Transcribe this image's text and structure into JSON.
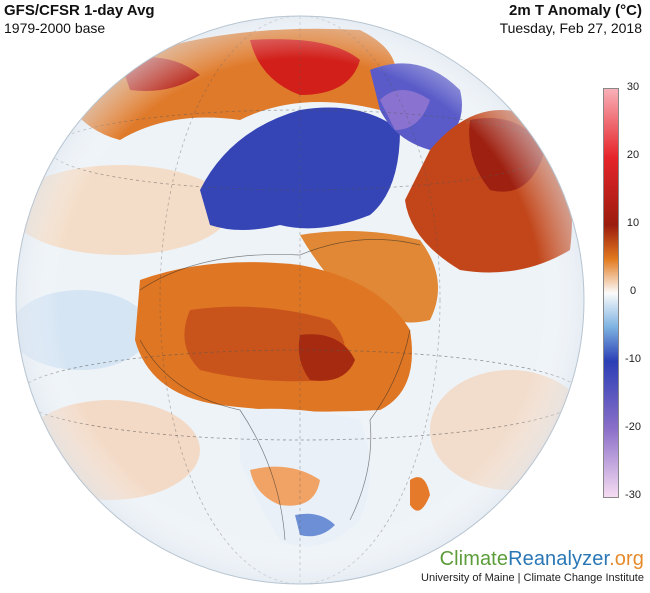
{
  "header": {
    "model_title": "GFS/CFSR 1-day Avg",
    "baseline": "1979-2000 base",
    "variable_title": "2m T Anomaly (°C)",
    "date": "Tuesday, Feb 27, 2018"
  },
  "colorbar": {
    "ticks": [
      "30",
      "20",
      "10",
      "0",
      "-10",
      "-20",
      "-30"
    ],
    "min": -30,
    "max": 30,
    "stops": [
      {
        "value": 30,
        "color": "#f9b0b8"
      },
      {
        "value": 20,
        "color": "#e6242a"
      },
      {
        "value": 10,
        "color": "#9b1c0e"
      },
      {
        "value": 5,
        "color": "#e27a1f"
      },
      {
        "value": 0,
        "color": "#fbfbfb"
      },
      {
        "value": -5,
        "color": "#7fb3e2"
      },
      {
        "value": -10,
        "color": "#2b3fb5"
      },
      {
        "value": -20,
        "color": "#8b6fc9"
      },
      {
        "value": -30,
        "color": "#f6dcf2"
      }
    ]
  },
  "palette": {
    "ocean": "#eef3f8",
    "warm_orange": "#dd7624",
    "hot_red": "#b4280e",
    "cold_blue": "#3545b5",
    "light_orange": "#f3b784"
  },
  "branding": {
    "part1": "Climate",
    "part2": "Reanalyzer",
    "part3": ".org",
    "credit": "University of Maine | Climate Change Institute"
  }
}
